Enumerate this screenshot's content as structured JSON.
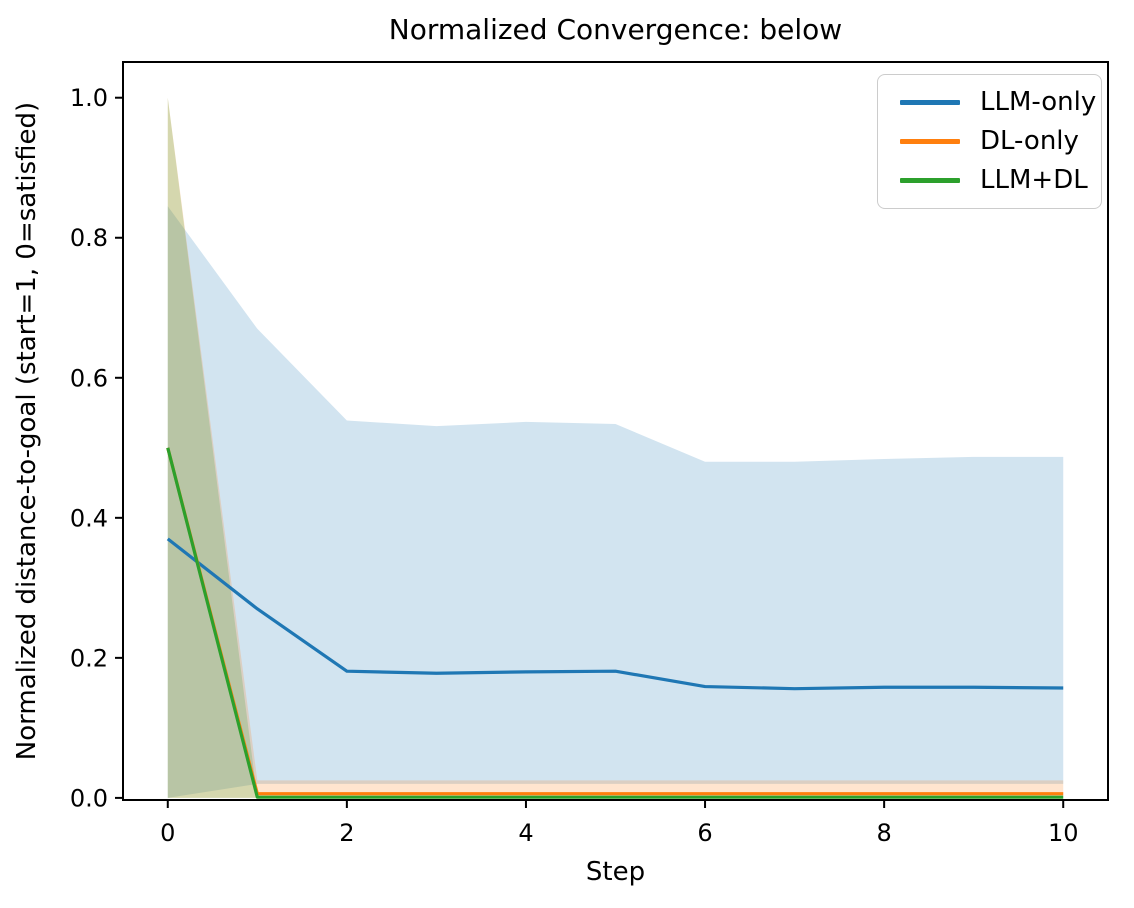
{
  "chart_data": {
    "type": "line",
    "title": "Normalized Convergence: below",
    "xlabel": "Step",
    "ylabel": "Normalized distance-to-goal (start=1, 0=satisfied)",
    "x": [
      0,
      1,
      2,
      3,
      4,
      5,
      6,
      7,
      8,
      9,
      10
    ],
    "xticks": [
      "0",
      "2",
      "4",
      "6",
      "8",
      "10"
    ],
    "yticks": [
      "0.0",
      "0.2",
      "0.4",
      "0.6",
      "0.8",
      "1.0"
    ],
    "xlim": [
      -0.5,
      10.5
    ],
    "ylim": [
      -0.003,
      1.051
    ],
    "grid": false,
    "legend_position": "upper right",
    "band_alpha": 0.2,
    "series": [
      {
        "name": "LLM-only",
        "color": "#1f77b4",
        "values": [
          0.37,
          0.27,
          0.181,
          0.178,
          0.18,
          0.181,
          0.159,
          0.156,
          0.158,
          0.158,
          0.157
        ],
        "band_upper": [
          0.845,
          0.67,
          0.539,
          0.531,
          0.537,
          0.534,
          0.48,
          0.48,
          0.484,
          0.487,
          0.487
        ],
        "band_lower": [
          0.0,
          0.02,
          0.02,
          0.02,
          0.02,
          0.02,
          0.02,
          0.02,
          0.02,
          0.02,
          0.02
        ]
      },
      {
        "name": "DL-only",
        "color": "#ff7f0e",
        "values": [
          0.5,
          0.006,
          0.006,
          0.006,
          0.006,
          0.006,
          0.006,
          0.006,
          0.006,
          0.006,
          0.006
        ],
        "band_upper": [
          1.0,
          0.025,
          0.025,
          0.025,
          0.025,
          0.025,
          0.025,
          0.025,
          0.025,
          0.025,
          0.025
        ],
        "band_lower": [
          0.0,
          0.0,
          0.0,
          0.0,
          0.0,
          0.0,
          0.0,
          0.0,
          0.0,
          0.0,
          0.0
        ]
      },
      {
        "name": "LLM+DL",
        "color": "#2ca02c",
        "values": [
          0.5,
          0.001,
          0.001,
          0.001,
          0.001,
          0.001,
          0.001,
          0.001,
          0.001,
          0.001,
          0.001
        ],
        "band_upper": [
          1.0,
          0.0,
          0.0,
          0.0,
          0.0,
          0.0,
          0.0,
          0.0,
          0.0,
          0.0,
          0.0
        ],
        "band_lower": [
          0.0,
          0.0,
          0.0,
          0.0,
          0.0,
          0.0,
          0.0,
          0.0,
          0.0,
          0.0,
          0.0
        ]
      }
    ]
  }
}
